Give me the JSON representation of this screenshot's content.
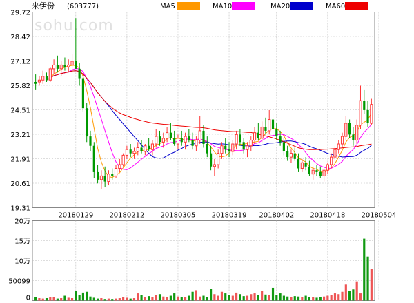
{
  "header": {
    "name": "来伊份",
    "code": "(603777)",
    "watermark": "sohu.com"
  },
  "legend": [
    {
      "label": "MA5",
      "color": "#ff9900"
    },
    {
      "label": "MA10",
      "color": "#ff00ff"
    },
    {
      "label": "MA20",
      "color": "#0000cc"
    },
    {
      "label": "MA60",
      "color": "#ee0000"
    }
  ],
  "colors": {
    "up": "#ff3333",
    "down": "#009900",
    "grid": "#bbbbbb",
    "frame": "#888888",
    "vol_up": "#ee5555",
    "vol_down": "#119911"
  },
  "chart_data": [
    {
      "type": "candlestick",
      "ylim": [
        19.31,
        29.72
      ],
      "yticks": [
        "29.72",
        "28.42",
        "27.12",
        "25.82",
        "24.51",
        "23.21",
        "21.91",
        "20.61",
        "19.31"
      ],
      "xticks": [
        "20180129",
        "20180212",
        "20180305",
        "20180319",
        "20180402",
        "20180418",
        "20180504"
      ],
      "xtick_index": [
        11,
        25,
        39,
        53,
        66,
        80,
        94
      ],
      "ohlc": [
        [
          26.0,
          26.4,
          25.6,
          25.9
        ],
        [
          26.0,
          26.3,
          25.8,
          26.1
        ],
        [
          26.1,
          26.6,
          25.9,
          26.3
        ],
        [
          26.3,
          26.5,
          26.0,
          26.1
        ],
        [
          26.1,
          26.8,
          26.0,
          26.7
        ],
        [
          26.7,
          27.2,
          26.4,
          26.9
        ],
        [
          26.9,
          27.4,
          26.5,
          26.7
        ],
        [
          26.7,
          27.1,
          26.3,
          26.9
        ],
        [
          26.9,
          27.3,
          26.6,
          26.8
        ],
        [
          26.8,
          27.2,
          26.5,
          26.9
        ],
        [
          26.9,
          27.5,
          26.7,
          27.1
        ],
        [
          27.1,
          29.4,
          26.8,
          26.7
        ],
        [
          26.7,
          27.0,
          25.8,
          26.2
        ],
        [
          26.2,
          26.4,
          24.4,
          24.6
        ],
        [
          24.6,
          24.9,
          22.8,
          23.1
        ],
        [
          23.1,
          23.4,
          22.3,
          22.6
        ],
        [
          22.6,
          22.8,
          20.9,
          21.2
        ],
        [
          21.2,
          21.6,
          20.6,
          20.8
        ],
        [
          20.8,
          21.3,
          20.3,
          21.0
        ],
        [
          21.0,
          21.5,
          20.4,
          20.7
        ],
        [
          20.7,
          21.3,
          20.5,
          21.1
        ],
        [
          21.1,
          21.4,
          20.8,
          21.0
        ],
        [
          21.0,
          21.6,
          20.9,
          21.4
        ],
        [
          21.4,
          21.9,
          21.2,
          21.6
        ],
        [
          21.6,
          22.2,
          21.5,
          22.1
        ],
        [
          22.1,
          22.6,
          21.9,
          22.4
        ],
        [
          22.4,
          22.7,
          22.0,
          22.2
        ],
        [
          22.2,
          22.5,
          21.9,
          22.3
        ],
        [
          22.3,
          22.8,
          22.1,
          22.5
        ],
        [
          22.5,
          22.9,
          22.2,
          22.3
        ],
        [
          22.3,
          22.7,
          22.1,
          22.6
        ],
        [
          22.6,
          23.0,
          22.3,
          22.4
        ],
        [
          22.4,
          22.9,
          22.1,
          22.7
        ],
        [
          22.7,
          23.5,
          22.5,
          23.1
        ],
        [
          23.1,
          23.4,
          22.6,
          22.8
        ],
        [
          22.8,
          23.3,
          22.5,
          23.0
        ],
        [
          23.0,
          23.6,
          22.8,
          23.3
        ],
        [
          23.3,
          23.8,
          22.9,
          23.0
        ],
        [
          23.0,
          23.4,
          22.6,
          22.7
        ],
        [
          22.7,
          23.2,
          22.4,
          23.0
        ],
        [
          23.0,
          23.4,
          22.6,
          22.8
        ],
        [
          22.8,
          23.3,
          22.4,
          23.1
        ],
        [
          23.1,
          23.5,
          22.8,
          22.9
        ],
        [
          22.9,
          23.3,
          22.4,
          22.6
        ],
        [
          22.6,
          23.1,
          22.3,
          22.9
        ],
        [
          22.9,
          24.2,
          22.7,
          23.4
        ],
        [
          23.4,
          23.7,
          22.5,
          22.7
        ],
        [
          22.7,
          23.1,
          22.0,
          22.2
        ],
        [
          22.2,
          22.6,
          21.3,
          21.5
        ],
        [
          21.5,
          21.9,
          21.0,
          21.6
        ],
        [
          21.6,
          22.4,
          21.4,
          22.2
        ],
        [
          22.2,
          22.8,
          21.9,
          22.6
        ],
        [
          22.6,
          23.0,
          22.2,
          22.4
        ],
        [
          22.4,
          22.8,
          22.0,
          22.3
        ],
        [
          22.3,
          22.9,
          22.1,
          22.7
        ],
        [
          22.7,
          23.4,
          22.4,
          23.2
        ],
        [
          23.2,
          23.5,
          22.6,
          22.8
        ],
        [
          22.8,
          23.0,
          22.2,
          22.4
        ],
        [
          22.4,
          22.8,
          22.0,
          22.6
        ],
        [
          22.6,
          23.1,
          22.3,
          22.9
        ],
        [
          22.9,
          23.6,
          22.7,
          23.3
        ],
        [
          23.3,
          23.8,
          22.9,
          23.0
        ],
        [
          23.0,
          23.9,
          22.8,
          23.6
        ],
        [
          23.6,
          24.1,
          23.2,
          23.4
        ],
        [
          23.4,
          24.5,
          23.2,
          24.0
        ],
        [
          24.0,
          24.3,
          23.3,
          23.5
        ],
        [
          23.5,
          23.8,
          22.9,
          23.1
        ],
        [
          23.1,
          23.4,
          22.6,
          22.8
        ],
        [
          22.8,
          23.0,
          22.1,
          22.3
        ],
        [
          22.3,
          22.6,
          21.8,
          22.0
        ],
        [
          22.0,
          22.4,
          21.7,
          22.2
        ],
        [
          22.2,
          22.5,
          21.8,
          21.9
        ],
        [
          21.9,
          22.2,
          21.2,
          21.4
        ],
        [
          21.4,
          21.9,
          21.2,
          21.7
        ],
        [
          21.7,
          22.0,
          21.3,
          21.5
        ],
        [
          21.5,
          21.8,
          21.0,
          21.1
        ],
        [
          21.1,
          21.5,
          20.8,
          21.3
        ],
        [
          21.3,
          21.6,
          21.0,
          21.2
        ],
        [
          21.2,
          21.5,
          20.9,
          21.0
        ],
        [
          21.0,
          21.4,
          20.7,
          21.3
        ],
        [
          21.3,
          21.7,
          21.1,
          21.6
        ],
        [
          21.6,
          22.2,
          21.4,
          22.0
        ],
        [
          22.0,
          22.6,
          21.8,
          22.4
        ],
        [
          22.4,
          22.9,
          22.2,
          22.7
        ],
        [
          22.7,
          23.3,
          22.5,
          23.1
        ],
        [
          23.1,
          24.2,
          22.9,
          23.8
        ],
        [
          23.8,
          24.0,
          23.0,
          23.2
        ],
        [
          23.2,
          23.6,
          22.6,
          22.9
        ],
        [
          22.9,
          24.0,
          22.7,
          23.7
        ],
        [
          23.7,
          25.8,
          23.5,
          25.0
        ],
        [
          25.0,
          25.6,
          24.3,
          24.5
        ],
        [
          24.5,
          25.0,
          23.6,
          23.8
        ],
        [
          23.8,
          25.1,
          23.7,
          24.8
        ]
      ],
      "volume_ylim": [
        0,
        200000
      ],
      "volume_yticks": [
        "20万",
        "15万",
        "10万",
        "50099",
        "0"
      ],
      "volume": [
        8,
        6,
        5,
        6,
        9,
        8,
        5,
        6,
        12,
        7,
        6,
        24,
        14,
        20,
        22,
        10,
        7,
        5,
        6,
        4,
        5,
        4,
        5,
        6,
        8,
        7,
        5,
        6,
        18,
        13,
        9,
        11,
        8,
        14,
        16,
        10,
        9,
        12,
        18,
        10,
        9,
        8,
        12,
        22,
        26,
        10,
        12,
        9,
        30,
        16,
        12,
        22,
        18,
        14,
        12,
        20,
        16,
        11,
        12,
        16,
        18,
        14,
        24,
        15,
        13,
        32,
        14,
        18,
        12,
        10,
        9,
        11,
        10,
        9,
        12,
        8,
        9,
        7,
        8,
        10,
        12,
        14,
        18,
        16,
        22,
        40,
        25,
        28,
        48,
        18,
        155,
        110,
        80
      ]
    }
  ]
}
